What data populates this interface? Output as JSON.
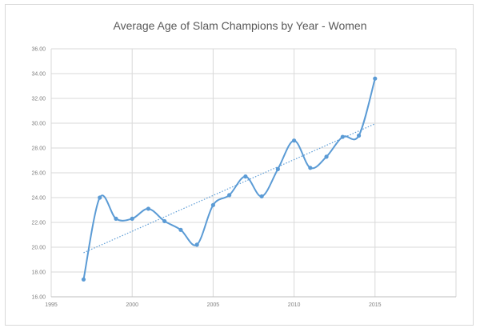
{
  "chart_data": {
    "type": "scatter",
    "title": "Average Age of Slam Champions by Year - Women",
    "xlabel": "",
    "ylabel": "",
    "xlim": [
      1995,
      2020
    ],
    "ylim": [
      16,
      36
    ],
    "x_ticks": [
      "1995",
      "2000",
      "2005",
      "2010",
      "2015"
    ],
    "y_ticks": [
      "16.00",
      "18.00",
      "20.00",
      "22.00",
      "24.00",
      "26.00",
      "28.00",
      "30.00",
      "32.00",
      "34.00",
      "36.00"
    ],
    "grid": true,
    "smooth_line": true,
    "series": [
      {
        "color": "#5b9bd5",
        "x": [
          1997,
          1998,
          1999,
          2000,
          2001,
          2002,
          2003,
          2004,
          2005,
          2006,
          2007,
          2008,
          2009,
          2010,
          2011,
          2012,
          2013,
          2014,
          2015
        ],
        "y": [
          17.4,
          24.0,
          22.3,
          22.3,
          23.1,
          22.1,
          21.4,
          20.2,
          23.4,
          24.2,
          25.7,
          24.1,
          26.3,
          28.6,
          26.4,
          27.3,
          28.9,
          29.0,
          33.6
        ]
      }
    ],
    "trendline": {
      "type": "linear",
      "color": "#5b9bd5",
      "style": "dotted"
    }
  }
}
